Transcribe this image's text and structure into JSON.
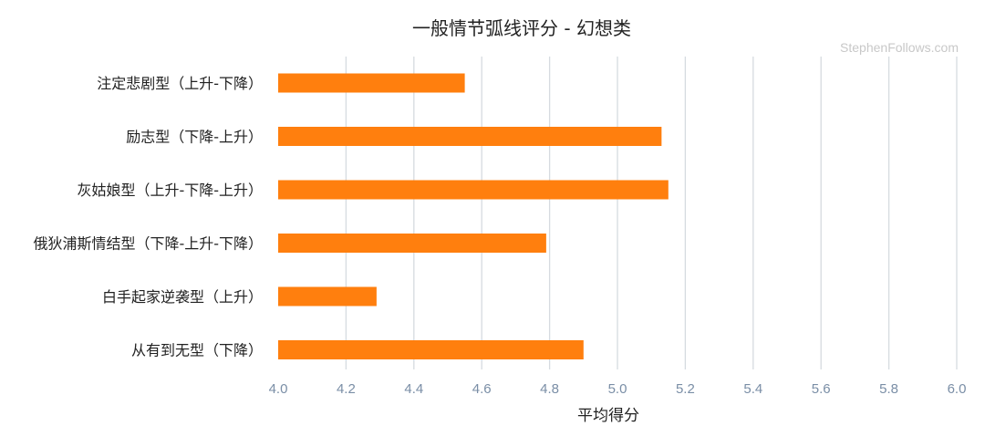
{
  "chart_data": {
    "type": "bar",
    "orientation": "horizontal",
    "title": "一般情节弧线评分 - 幻想类",
    "watermark": "StephenFollows.com",
    "xlabel": "平均得分",
    "ylabel": "",
    "xlim": [
      4.0,
      6.0
    ],
    "xticks": [
      "4.0",
      "4.2",
      "4.4",
      "4.6",
      "4.8",
      "5.0",
      "5.2",
      "5.4",
      "5.6",
      "5.8",
      "6.0"
    ],
    "grid": true,
    "bar_color": "#ff7f0e",
    "grid_color": "#d6dbe0",
    "categories": [
      "注定悲剧型（上升-下降）",
      "励志型（下降-上升）",
      "灰姑娘型（上升-下降-上升）",
      "俄狄浦斯情结型（下降-上升-下降）",
      "白手起家逆袭型（上升）",
      "从有到无型（下降）"
    ],
    "values": [
      4.55,
      5.13,
      5.15,
      4.79,
      4.29,
      4.9
    ]
  }
}
